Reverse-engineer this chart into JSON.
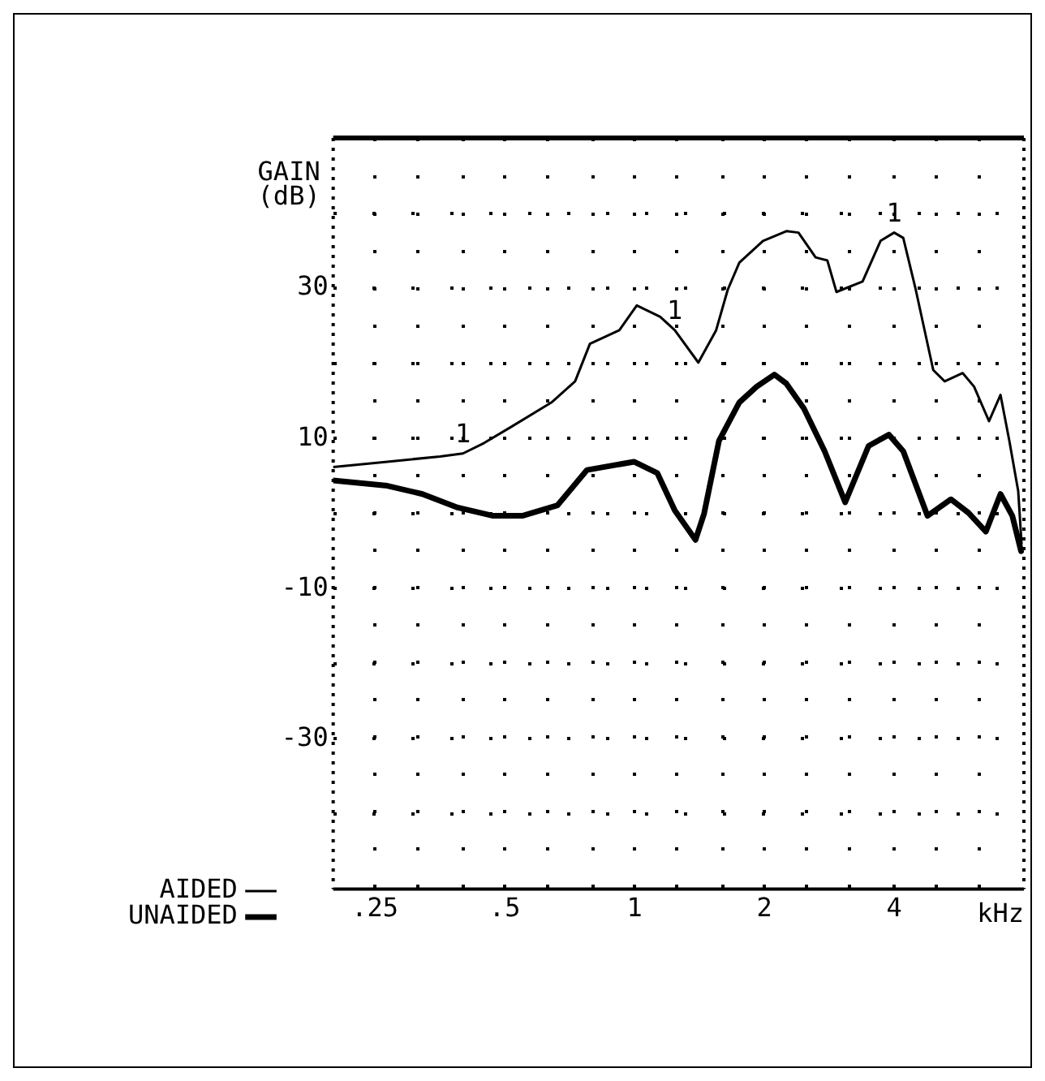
{
  "chart_data": {
    "type": "line",
    "xlabel": "kHz",
    "ylabel": "GAIN\n(dB)",
    "log": "x",
    "xlim": [
      0.2,
      8
    ],
    "ylim": [
      -50,
      50
    ],
    "xticks": [
      {
        "value": 0.25,
        "label": ".25"
      },
      {
        "value": 0.315,
        "label": null
      },
      {
        "value": 0.4,
        "label": null
      },
      {
        "value": 0.5,
        "label": ".5"
      },
      {
        "value": 0.63,
        "label": null
      },
      {
        "value": 0.8,
        "label": null
      },
      1,
      {
        "value": 1.25,
        "label": null
      },
      {
        "value": 1.6,
        "label": null
      },
      2,
      {
        "value": 2.5,
        "label": null
      },
      {
        "value": 3.15,
        "label": null
      },
      4,
      {
        "value": 5,
        "label": null
      },
      {
        "value": 6.3,
        "label": null
      }
    ],
    "yticks": [
      {
        "value": 40,
        "label": null
      },
      30,
      {
        "value": 20,
        "label": null
      },
      10,
      {
        "value": 0,
        "label": null
      },
      -10,
      {
        "value": -20,
        "label": null
      },
      -30,
      {
        "value": -40,
        "label": null
      }
    ],
    "grid": true,
    "legend": "bottom left",
    "marker": "none",
    "line_style": "solid",
    "series": [
      {
        "name": "AIDED",
        "color": "#000000",
        "x": [
          0.2,
          0.267,
          0.354,
          0.4,
          0.448,
          0.516,
          0.642,
          0.728,
          0.788,
          0.922,
          1.012,
          1.147,
          1.24,
          1.406,
          1.546,
          1.645,
          1.75,
          1.986,
          2.25,
          2.4,
          2.63,
          2.8,
          2.94,
          3.38,
          3.72,
          4.0,
          4.2,
          4.49,
          4.93,
          5.24,
          5.77,
          6.13,
          6.64,
          7.06,
          7.4,
          7.76,
          7.9
        ],
        "values": [
          6.2,
          6.9,
          7.6,
          8,
          9.4,
          11.5,
          14.8,
          17.6,
          22.6,
          24.4,
          27.7,
          26.2,
          24.4,
          20.1,
          24.4,
          29.8,
          33.4,
          36.3,
          37.6,
          37.4,
          34.1,
          33.7,
          29.5,
          30.9,
          36.3,
          37.4,
          36.7,
          29.8,
          19.1,
          17.6,
          18.7,
          16.9,
          12.3,
          15.8,
          9.7,
          3,
          -4
        ]
      },
      {
        "name": "UNAIDED",
        "color": "#000000",
        "x": [
          0.2,
          0.267,
          0.322,
          0.389,
          0.47,
          0.549,
          0.663,
          0.776,
          0.997,
          1.129,
          1.24,
          1.385,
          1.45,
          1.57,
          1.75,
          1.92,
          2.11,
          2.25,
          2.47,
          2.76,
          3.08,
          3.49,
          3.89,
          4.2,
          4.78,
          5.42,
          5.95,
          6.53,
          7.06,
          7.52,
          7.88
        ],
        "values": [
          4.4,
          3.7,
          2.6,
          0.8,
          -0.3,
          -0.3,
          1.1,
          5.8,
          6.9,
          5.4,
          0.4,
          -3.5,
          0,
          9.7,
          14.8,
          16.9,
          18.5,
          17.3,
          14,
          8.3,
          1.5,
          9,
          10.5,
          8.3,
          -0.3,
          1.9,
          0.1,
          -2.4,
          2.6,
          -0.3,
          -5
        ]
      }
    ],
    "annotations": [
      {
        "text": "1",
        "x": 0.4,
        "y": 8
      },
      {
        "text": "1",
        "x": 1.24,
        "y": 24.4
      },
      {
        "text": "1",
        "x": 4.0,
        "y": 37.4
      }
    ]
  }
}
